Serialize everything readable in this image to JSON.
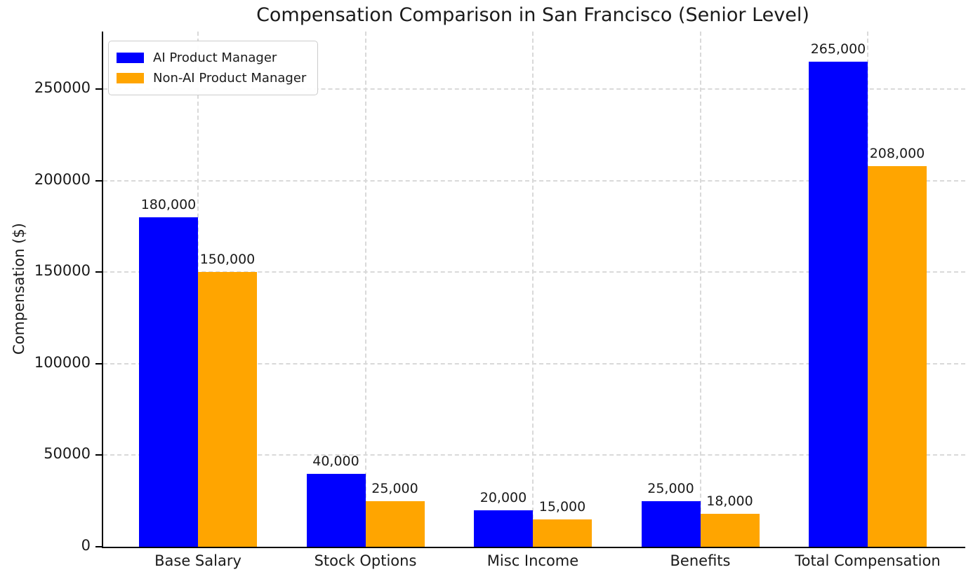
{
  "chart_data": {
    "type": "bar",
    "title": "Compensation Comparison in San Francisco (Senior Level)",
    "xlabel": "",
    "ylabel": "Compensation ($)",
    "categories": [
      "Base Salary",
      "Stock Options",
      "Misc Income",
      "Benefits",
      "Total Compensation"
    ],
    "series": [
      {
        "name": "AI Product Manager",
        "color": "#0000ff",
        "values": [
          180000,
          40000,
          20000,
          25000,
          265000
        ],
        "value_labels": [
          "180,000",
          "40,000",
          "20,000",
          "25,000",
          "265,000"
        ]
      },
      {
        "name": "Non-AI Product Manager",
        "color": "#ffa500",
        "values": [
          150000,
          25000,
          15000,
          18000,
          208000
        ],
        "value_labels": [
          "150,000",
          "25,000",
          "15,000",
          "18,000",
          "208,000"
        ]
      }
    ],
    "yticks": [
      0,
      50000,
      100000,
      150000,
      200000,
      250000
    ],
    "ytick_labels": [
      "0",
      "50000",
      "100000",
      "150000",
      "200000",
      "250000"
    ],
    "ylim": [
      0,
      281400
    ],
    "grid": true,
    "grid_style": "dashed",
    "legend_position": "upper left",
    "colors": {
      "axis": "#000000",
      "grid": "#d9d9d9",
      "text": "#1a1a1a"
    }
  }
}
